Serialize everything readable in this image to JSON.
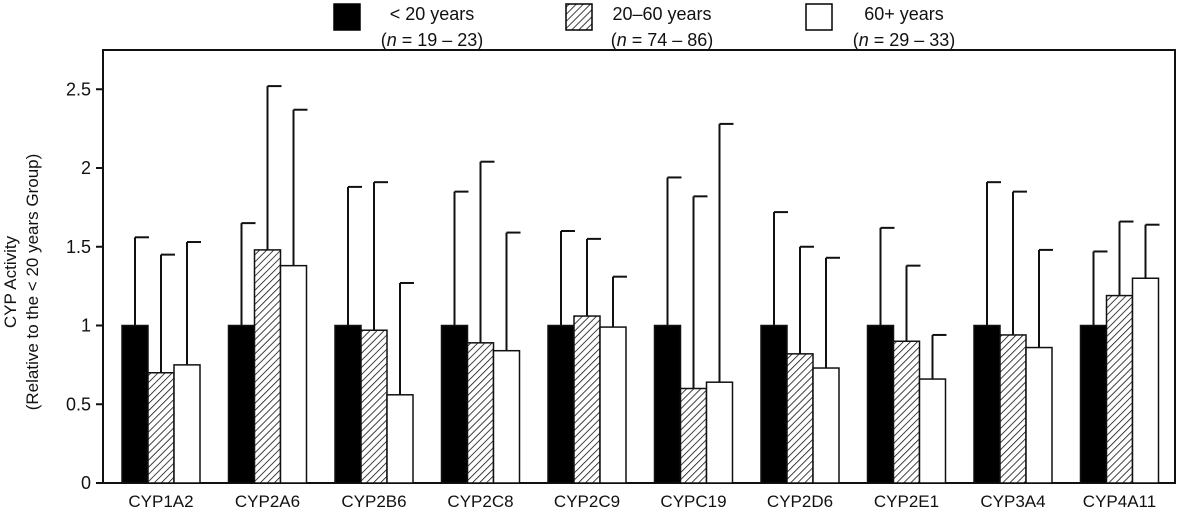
{
  "chart_data": {
    "type": "bar",
    "ylabel_line1": "CYP Activity",
    "ylabel_line2": "(Relative to the < 20 years Group)",
    "ylim": [
      0,
      2.7
    ],
    "yticks": [
      0,
      0.5,
      1,
      1.5,
      2,
      2.5
    ],
    "ytick_labels": [
      "0",
      "0.5",
      "1",
      "1.5",
      "2",
      "2.5"
    ],
    "grid": false,
    "legend_position": "top",
    "categories": [
      "CYP1A2",
      "CYP2A6",
      "CYP2B6",
      "CYP2C8",
      "CYP2C9",
      "CYPC19",
      "CYP2D6",
      "CYP2E1",
      "CYP3A4",
      "CYP4A11"
    ],
    "series": [
      {
        "name": "< 20 years",
        "n_label_prefix": "n",
        "n_label_range": " = 19 – 23",
        "fill": "#000000",
        "values": [
          1.0,
          1.0,
          1.0,
          1.0,
          1.0,
          1.0,
          1.0,
          1.0,
          1.0,
          1.0
        ],
        "error_upper": [
          1.56,
          1.65,
          1.88,
          1.85,
          1.6,
          1.94,
          1.72,
          1.62,
          1.91,
          1.47
        ]
      },
      {
        "name": "20–60 years",
        "n_label_prefix": "n",
        "n_label_range": " = 74 – 86",
        "fill": "#c8c8c8",
        "values": [
          0.7,
          1.48,
          0.97,
          0.89,
          1.06,
          0.6,
          0.82,
          0.9,
          0.94,
          1.19
        ],
        "error_upper": [
          1.45,
          2.52,
          1.91,
          2.04,
          1.55,
          1.82,
          1.5,
          1.38,
          1.85,
          1.66
        ]
      },
      {
        "name": "60+ years",
        "n_label_prefix": "n",
        "n_label_range": " = 29 – 33",
        "fill": "#ffffff",
        "values": [
          0.75,
          1.38,
          0.56,
          0.84,
          0.99,
          0.64,
          0.73,
          0.66,
          0.86,
          1.3
        ],
        "error_upper": [
          1.53,
          2.37,
          1.27,
          1.59,
          1.31,
          2.28,
          1.43,
          0.94,
          1.48,
          1.64
        ]
      }
    ]
  }
}
